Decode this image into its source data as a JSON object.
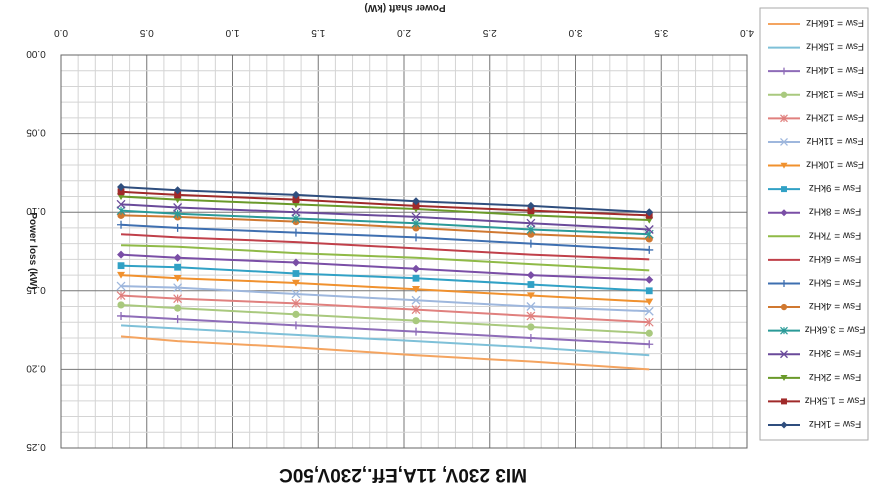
{
  "chart_data": {
    "type": "line",
    "title": "MI3 230V, 11A,Eff.,230V,50C",
    "xlabel": "Power shaft (kW)",
    "ylabel": "Power loss (kW)",
    "xlim": [
      0,
      4
    ],
    "ylim": [
      0,
      0.25
    ],
    "x_ticks": [
      "0.0",
      "0.5",
      "1.0",
      "1.5",
      "2.0",
      "2.5",
      "3.0",
      "3.5",
      "4.0"
    ],
    "y_ticks": [
      "0.00",
      "0.05",
      "0.10",
      "0.15",
      "0.20",
      "0.25"
    ],
    "x_axis_position": "top",
    "y_axis_inverted": true,
    "grid": true,
    "legend_position": "right",
    "x": [
      0.35,
      0.68,
      1.37,
      2.07,
      2.74,
      3.43
    ],
    "series": [
      {
        "name": "Fsw = 16kHz",
        "color": "#f4a460",
        "marker": "none",
        "values": [
          0.179,
          0.182,
          0.186,
          0.191,
          0.195,
          0.2
        ]
      },
      {
        "name": "Fsw = 15kHz",
        "color": "#7ec0d8",
        "marker": "none",
        "values": [
          0.172,
          0.174,
          0.178,
          0.182,
          0.186,
          0.191
        ]
      },
      {
        "name": "Fsw = 14kHz",
        "color": "#8e6cb8",
        "marker": "plus",
        "values": [
          0.166,
          0.168,
          0.172,
          0.176,
          0.18,
          0.184
        ]
      },
      {
        "name": "Fsw = 13kHz",
        "color": "#a9c97e",
        "marker": "circle",
        "values": [
          0.159,
          0.161,
          0.165,
          0.169,
          0.173,
          0.177
        ]
      },
      {
        "name": "Fsw = 12kHz",
        "color": "#e0807e",
        "marker": "star",
        "values": [
          0.153,
          0.155,
          0.158,
          0.162,
          0.166,
          0.17
        ]
      },
      {
        "name": "Fsw = 11kHz",
        "color": "#9eb7dd",
        "marker": "x",
        "values": [
          0.147,
          0.148,
          0.152,
          0.156,
          0.16,
          0.163
        ]
      },
      {
        "name": "Fsw = 10kHz",
        "color": "#f0912e",
        "marker": "triangle-down",
        "values": [
          0.14,
          0.142,
          0.145,
          0.149,
          0.153,
          0.157
        ]
      },
      {
        "name": "Fsw = 9kHz",
        "color": "#31a1c5",
        "marker": "square",
        "values": [
          0.134,
          0.135,
          0.139,
          0.142,
          0.146,
          0.15
        ]
      },
      {
        "name": "Fsw = 8kHz",
        "color": "#7a4ea6",
        "marker": "diamond",
        "values": [
          0.127,
          0.129,
          0.132,
          0.136,
          0.14,
          0.143
        ]
      },
      {
        "name": "Fsw = 7kHz",
        "color": "#8fba47",
        "marker": "none",
        "values": [
          0.121,
          0.122,
          0.126,
          0.129,
          0.133,
          0.137
        ]
      },
      {
        "name": "Fsw = 6kHz",
        "color": "#c0404a",
        "marker": "none",
        "values": [
          0.114,
          0.116,
          0.119,
          0.123,
          0.127,
          0.13
        ]
      },
      {
        "name": "Fsw = 5kHz",
        "color": "#3e6fb0",
        "marker": "plus",
        "values": [
          0.108,
          0.11,
          0.113,
          0.116,
          0.12,
          0.124
        ]
      },
      {
        "name": "Fsw = 4kHz",
        "color": "#d07830",
        "marker": "circle",
        "values": [
          0.102,
          0.103,
          0.106,
          0.11,
          0.114,
          0.117
        ]
      },
      {
        "name": "Fsw = 3.6kHz",
        "color": "#2a9a98",
        "marker": "star",
        "values": [
          0.099,
          0.101,
          0.104,
          0.107,
          0.111,
          0.114
        ]
      },
      {
        "name": "Fsw = 3kHz",
        "color": "#6a4a9a",
        "marker": "x",
        "values": [
          0.095,
          0.097,
          0.1,
          0.103,
          0.107,
          0.111
        ]
      },
      {
        "name": "Fsw = 2kHz",
        "color": "#6a9a2a",
        "marker": "triangle-down",
        "values": [
          0.09,
          0.092,
          0.095,
          0.098,
          0.102,
          0.105
        ]
      },
      {
        "name": "Fsw = 1.5kHz",
        "color": "#a02a2a",
        "marker": "square",
        "values": [
          0.087,
          0.089,
          0.092,
          0.096,
          0.099,
          0.102
        ]
      },
      {
        "name": "Fsw = 1kHz",
        "color": "#2f4e7e",
        "marker": "diamond",
        "values": [
          0.084,
          0.086,
          0.089,
          0.093,
          0.096,
          0.1
        ]
      }
    ]
  }
}
